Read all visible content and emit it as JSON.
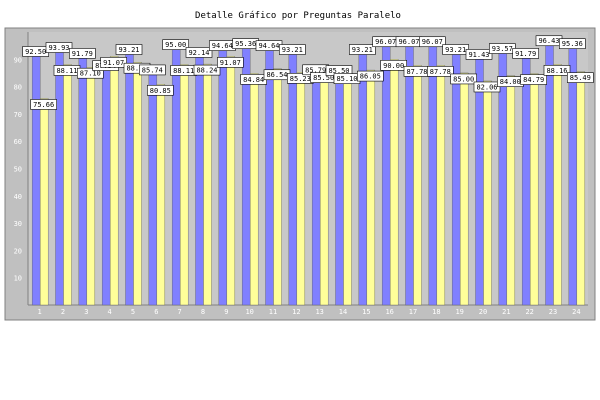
{
  "chart_data": {
    "type": "bar",
    "title": "Detalle Gráfico por Preguntas Paralelo",
    "categories": [
      "1",
      "2",
      "3",
      "4",
      "5",
      "6",
      "7",
      "8",
      "9",
      "10",
      "11",
      "12",
      "13",
      "14",
      "15",
      "16",
      "17",
      "18",
      "19",
      "20",
      "21",
      "22",
      "23",
      "24"
    ],
    "ylim": [
      0,
      100
    ],
    "yticks": [
      10,
      20,
      30,
      40,
      50,
      60,
      70,
      80,
      90
    ],
    "grid": false,
    "legend": "none",
    "series": [
      {
        "color": "#8080ff",
        "values": [
          92.5,
          93.93,
          91.79,
          87.34,
          93.21,
          85.74,
          95.0,
          92.14,
          94.64,
          95.36,
          94.64,
          93.21,
          85.79,
          85.5,
          93.21,
          96.07,
          96.07,
          96.07,
          93.21,
          91.43,
          93.57,
          91.79,
          96.43,
          95.36
        ],
        "labels": [
          "92.50",
          "93.93",
          "91.79",
          "87.34",
          "93.21",
          "85.74",
          "95.00",
          "92.14",
          "94.64",
          "95.36",
          "94.64",
          "93.21",
          "85.79",
          "85.50",
          "93.21",
          "96.07",
          "96.07",
          "96.07",
          "93.21",
          "91.43",
          "93.57",
          "91.79",
          "96.43",
          "95.36"
        ]
      },
      {
        "color": "#ffff99",
        "values": [
          75.66,
          88.11,
          87.1,
          91.07,
          88.93,
          80.85,
          88.11,
          88.24,
          91.07,
          84.84,
          86.54,
          85.23,
          85.5,
          85.1,
          86.05,
          90.0,
          87.78,
          87.78,
          85.0,
          82.06,
          84.0,
          84.79,
          88.16,
          85.49
        ],
        "labels": [
          "75.66",
          "88.11",
          "87.10",
          "91.07",
          "88.93",
          "80.85",
          "88.11",
          "88.24",
          "91.07",
          "84.84",
          "86.54",
          "85.23",
          "85.50",
          "85.10",
          "86.05",
          "90.00",
          "87.78",
          "87.78",
          "85.00",
          "82.06",
          "84.00",
          "84.79",
          "88.16",
          "85.49"
        ]
      }
    ]
  },
  "colors": {
    "background": "#c0c0c0",
    "plot_background": "#c8c8c8",
    "label_box": "#ffffff"
  }
}
